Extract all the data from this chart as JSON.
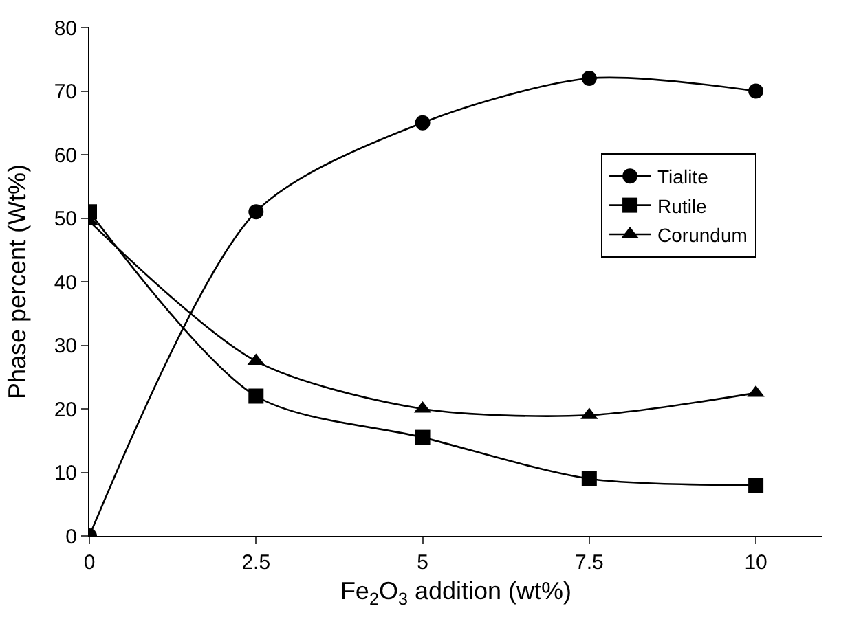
{
  "chart_data": {
    "type": "line",
    "xlabel": "Fe$_{2}$O$_{3}$ addition (wt%)",
    "ylabel": "Phase percent (Wt%)",
    "x": [
      0,
      2.5,
      5,
      7.5,
      10
    ],
    "series": [
      {
        "name": "Tialite",
        "color": "#000000",
        "marker": "circle",
        "values": [
          0,
          51,
          65,
          72,
          70
        ]
      },
      {
        "name": "Rutile",
        "color": "#000000",
        "marker": "square",
        "values": [
          51,
          22,
          15.5,
          9,
          8
        ]
      },
      {
        "name": "Corundum",
        "color": "#000000",
        "marker": "triangle",
        "values": [
          49.5,
          27.5,
          20,
          19,
          22.5
        ]
      }
    ],
    "xlim": [
      0,
      11
    ],
    "xticks": [
      0,
      2.5,
      5,
      7.5,
      10
    ],
    "ylim": [
      0,
      80
    ],
    "yticks": [
      0,
      10,
      20,
      30,
      40,
      50,
      60,
      70,
      80
    ],
    "legend": "right",
    "line_style": "solid"
  }
}
